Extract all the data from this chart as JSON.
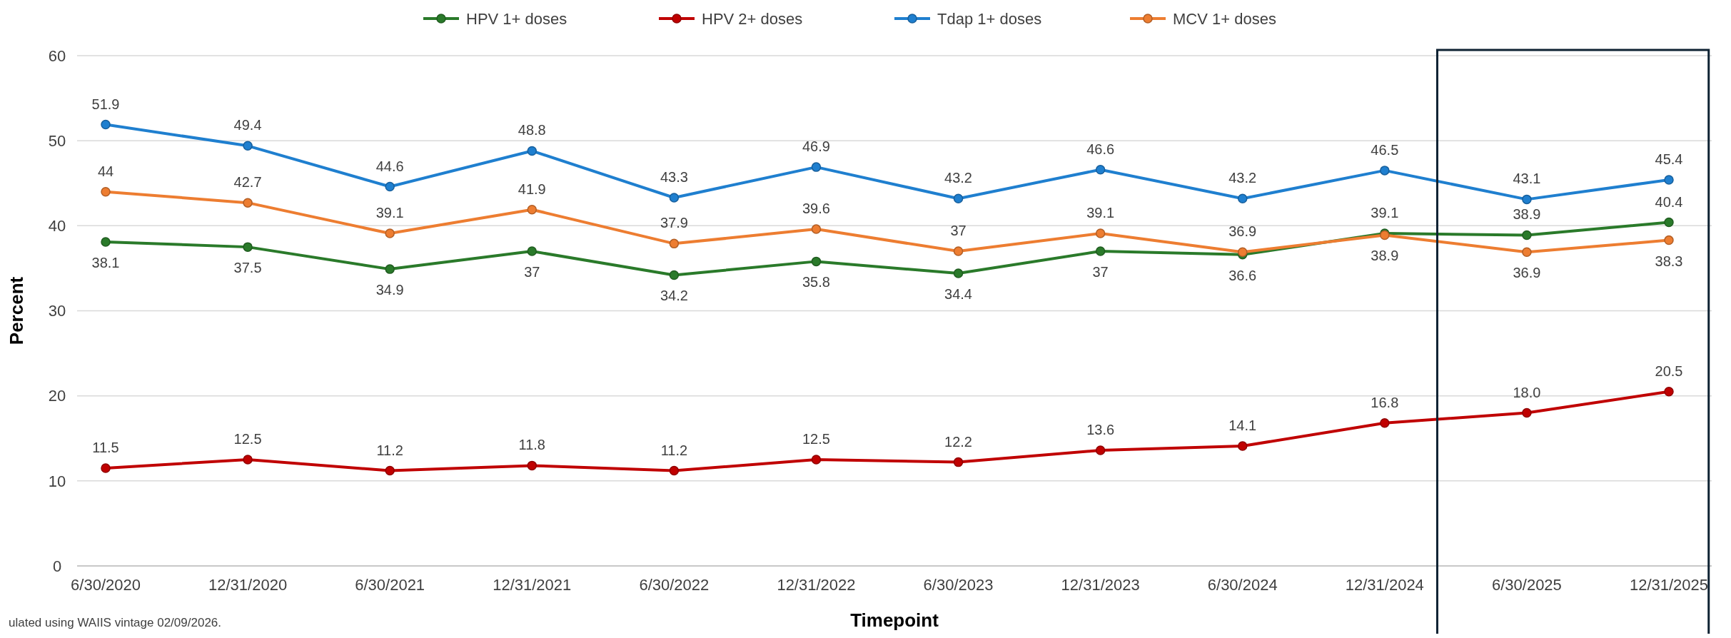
{
  "chart_data": {
    "type": "line",
    "xlabel": "Timepoint",
    "ylabel": "Percent",
    "categories": [
      "6/30/2020",
      "12/31/2020",
      "6/30/2021",
      "12/31/2021",
      "6/30/2022",
      "12/31/2022",
      "6/30/2023",
      "12/31/2023",
      "6/30/2024",
      "12/31/2024",
      "6/30/2025",
      "12/31/2025"
    ],
    "series": [
      {
        "name": "HPV 1+ doses",
        "color": "#2a7a2a",
        "values": [
          38.1,
          37.5,
          34.9,
          37,
          34.2,
          35.8,
          34.4,
          37,
          36.6,
          39.1,
          38.9,
          40.4
        ],
        "value_labels": [
          "38.1",
          "37.5",
          "34.9",
          "37",
          "34.2",
          "35.8",
          "34.4",
          "37",
          "36.6",
          "39.1",
          "38.9",
          "40.4"
        ]
      },
      {
        "name": "HPV 2+ doses",
        "color": "#c00000",
        "values": [
          11.5,
          12.5,
          11.2,
          11.8,
          11.2,
          12.5,
          12.2,
          13.6,
          14.1,
          16.8,
          18.0,
          20.5
        ],
        "value_labels": [
          "11.5",
          "12.5",
          "11.2",
          "11.8",
          "11.2",
          "12.5",
          "12.2",
          "13.6",
          "14.1",
          "16.8",
          "18.0",
          "20.5"
        ]
      },
      {
        "name": "Tdap 1+ doses",
        "color": "#1f7fcf",
        "values": [
          51.9,
          49.4,
          44.6,
          48.8,
          43.3,
          46.9,
          43.2,
          46.6,
          43.2,
          46.5,
          43.1,
          45.4
        ],
        "value_labels": [
          "51.9",
          "49.4",
          "44.6",
          "48.8",
          "43.3",
          "46.9",
          "43.2",
          "46.6",
          "43.2",
          "46.5",
          "43.1",
          "45.4"
        ]
      },
      {
        "name": "MCV 1+ doses",
        "color": "#ed7d31",
        "values": [
          44,
          42.7,
          39.1,
          41.9,
          37.9,
          39.6,
          37,
          39.1,
          36.9,
          38.9,
          36.9,
          38.3
        ],
        "value_labels": [
          "44",
          "42.7",
          "39.1",
          "41.9",
          "37.9",
          "39.6",
          "37",
          "39.1",
          "36.9",
          "38.9",
          "36.9",
          "38.3"
        ]
      }
    ],
    "ylim": [
      0,
      60
    ],
    "yticks": [
      0,
      10,
      20,
      30,
      40,
      50,
      60
    ],
    "grid": "y",
    "legend": "top",
    "marker": "circle",
    "line_style": "solid",
    "annotations": [
      "ulated using WAIIS vintage 02/09/2026."
    ]
  }
}
